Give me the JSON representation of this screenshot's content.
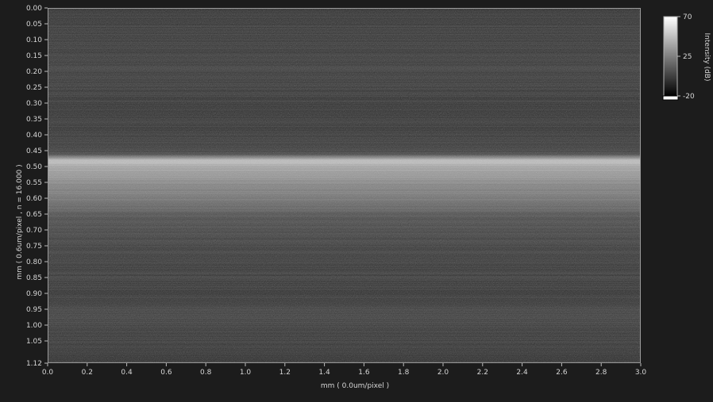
{
  "viewer": {
    "x_axis_label": "mm  ( 0.0um/pixel )",
    "y_axis_label": "mm  ( 0.6um/pixel ,  n = 16.000 )",
    "colorbar_label": "Intensity (dB)"
  },
  "chart_data": {
    "type": "heatmap",
    "title": "",
    "xlabel": "mm  ( 0.0um/pixel )",
    "ylabel": "mm  ( 0.6um/pixel ,  n = 16.000 )",
    "xlim": [
      0.0,
      3.0
    ],
    "ylim": [
      0.0,
      1.12
    ],
    "y_inverted": true,
    "x_ticks": [
      "0.0",
      "0.2",
      "0.4",
      "0.6",
      "0.8",
      "1.0",
      "1.2",
      "1.4",
      "1.6",
      "1.8",
      "2.0",
      "2.2",
      "2.4",
      "2.6",
      "2.8",
      "3.0"
    ],
    "y_ticks": [
      "0.00",
      "0.05",
      "0.10",
      "0.15",
      "0.20",
      "0.25",
      "0.30",
      "0.35",
      "0.40",
      "0.45",
      "0.50",
      "0.55",
      "0.60",
      "0.65",
      "0.70",
      "0.75",
      "0.80",
      "0.85",
      "0.90",
      "0.95",
      "1.00",
      "1.05",
      "1.12"
    ],
    "colorbar": {
      "label": "Intensity (dB)",
      "min": -20,
      "max": 70,
      "ticks": [
        "70",
        "25",
        "-20"
      ],
      "colormap": "grayscale"
    },
    "intensity_profile_db": [
      {
        "depth_mm": 0.0,
        "db": -8
      },
      {
        "depth_mm": 0.08,
        "db": -6
      },
      {
        "depth_mm": 0.21,
        "db": -5
      },
      {
        "depth_mm": 0.3,
        "db": -7
      },
      {
        "depth_mm": 0.44,
        "db": -6
      },
      {
        "depth_mm": 0.46,
        "db": 0
      },
      {
        "depth_mm": 0.48,
        "db": 48
      },
      {
        "depth_mm": 0.5,
        "db": 38
      },
      {
        "depth_mm": 0.55,
        "db": 26
      },
      {
        "depth_mm": 0.6,
        "db": 18
      },
      {
        "depth_mm": 0.63,
        "db": 10
      },
      {
        "depth_mm": 0.66,
        "db": 2
      },
      {
        "depth_mm": 0.75,
        "db": -4
      },
      {
        "depth_mm": 0.9,
        "db": -7
      },
      {
        "depth_mm": 0.97,
        "db": -3
      },
      {
        "depth_mm": 1.05,
        "db": -7
      },
      {
        "depth_mm": 1.12,
        "db": -9
      }
    ]
  },
  "colors": {
    "background": "#1c1c1c",
    "plot_bg": "#131313",
    "frame": "#9a9a9a",
    "text": "#d6d6d6"
  }
}
